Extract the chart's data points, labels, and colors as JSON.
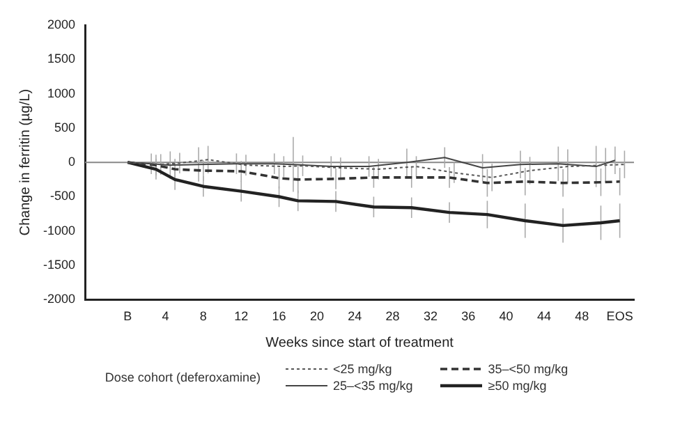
{
  "chart_data": {
    "type": "line",
    "xlabel": "Weeks since start of treatment",
    "ylabel": "Change in ferritin (µg/L)",
    "legend_title": "Dose cohort (deferoxamine)",
    "legend": "bottom",
    "grid": false,
    "marker": "none",
    "xlim": [
      -4.5,
      53.5
    ],
    "xticks": [
      {
        "value": 0,
        "label": "B"
      },
      4,
      8,
      12,
      16,
      20,
      24,
      28,
      32,
      36,
      40,
      44,
      48,
      {
        "value": 52,
        "label": "EOS"
      }
    ],
    "ylim": [
      -2000,
      2000
    ],
    "yticks": [
      -2000,
      -1500,
      -1000,
      -500,
      0,
      500,
      1000,
      1500,
      2000
    ],
    "ref_lines": [
      {
        "axis": "y",
        "value": 0,
        "color": "#888888",
        "line_style": "solid"
      }
    ],
    "series": [
      {
        "name": "<25 mg/kg",
        "color": "#555555",
        "line_style": "dotted",
        "x": [
          0,
          3.5,
          5.5,
          8.5,
          12.5,
          16.5,
          18.5,
          22.5,
          26.5,
          30.5,
          34.5,
          38.5,
          42.5,
          46.5,
          50.5,
          52.5
        ],
        "values": [
          0,
          -30,
          -10,
          40,
          -40,
          -60,
          -50,
          -80,
          -100,
          -60,
          -150,
          -220,
          -120,
          -60,
          -40,
          -30
        ],
        "errors": [
          null,
          150,
          150,
          200,
          150,
          150,
          150,
          150,
          150,
          150,
          150,
          200,
          200,
          250,
          250,
          200
        ]
      },
      {
        "name": "25–<35 mg/kg",
        "color": "#444444",
        "line_style": "solid",
        "x": [
          0,
          2.5,
          4.5,
          7.5,
          11.5,
          15.5,
          17.5,
          21.5,
          25.5,
          29.5,
          33.5,
          37.5,
          41.5,
          45.5,
          49.5,
          51.5
        ],
        "values": [
          0,
          -20,
          -40,
          -30,
          -20,
          -20,
          -30,
          -60,
          -60,
          0,
          70,
          -80,
          -30,
          -20,
          -60,
          30
        ],
        "errors": [
          null,
          150,
          200,
          250,
          150,
          150,
          400,
          150,
          150,
          200,
          150,
          200,
          200,
          250,
          300,
          200
        ]
      },
      {
        "name": "35–<50 mg/kg",
        "color": "#333333",
        "line_style": "dashed",
        "x": [
          0,
          3,
          5,
          8,
          12,
          16,
          18,
          22,
          26,
          30,
          34,
          38,
          42,
          46,
          50,
          52
        ],
        "values": [
          0,
          -40,
          -100,
          -120,
          -130,
          -230,
          -250,
          -240,
          -220,
          -220,
          -220,
          -300,
          -280,
          -300,
          -290,
          -280
        ],
        "errors": [
          null,
          150,
          150,
          150,
          150,
          150,
          200,
          150,
          150,
          150,
          150,
          200,
          200,
          200,
          200,
          200
        ]
      },
      {
        "name": "≥50 mg/kg",
        "color": "#222222",
        "line_style": "solid",
        "x": [
          0,
          3,
          5,
          8,
          12,
          16,
          18,
          22,
          26,
          30,
          34,
          38,
          42,
          46,
          50,
          52
        ],
        "values": [
          0,
          -100,
          -250,
          -350,
          -420,
          -500,
          -560,
          -570,
          -650,
          -660,
          -730,
          -760,
          -850,
          -920,
          -880,
          -850
        ],
        "errors": [
          null,
          150,
          150,
          150,
          150,
          150,
          150,
          150,
          150,
          150,
          150,
          200,
          250,
          250,
          250,
          250
        ]
      }
    ]
  }
}
